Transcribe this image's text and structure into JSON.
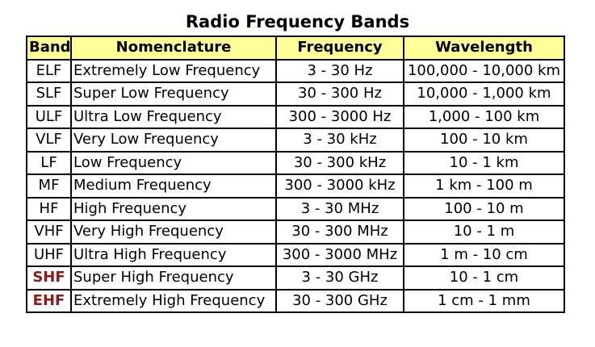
{
  "title": "Radio Frequency Bands",
  "colors": {
    "header_bg": "#ffff99",
    "highlight_band": "#8b1a1a",
    "border": "#000000"
  },
  "columns": {
    "band": "Band",
    "nomenclature": "Nomenclature",
    "frequency": "Frequency",
    "wavelength": "Wavelength"
  },
  "rows": [
    {
      "band": "ELF",
      "nomenclature": "Extremely Low Frequency",
      "frequency": "3 - 30 Hz",
      "wavelength": "100,000 - 10,000 km",
      "highlight": false
    },
    {
      "band": "SLF",
      "nomenclature": "Super Low Frequency",
      "frequency": "30 - 300 Hz",
      "wavelength": "10,000 - 1,000 km",
      "highlight": false
    },
    {
      "band": "ULF",
      "nomenclature": "Ultra Low Frequency",
      "frequency": "300 - 3000 Hz",
      "wavelength": "1,000 - 100 km",
      "highlight": false
    },
    {
      "band": "VLF",
      "nomenclature": "Very Low Frequency",
      "frequency": "3 - 30 kHz",
      "wavelength": "100 - 10 km",
      "highlight": false
    },
    {
      "band": "LF",
      "nomenclature": "Low Frequency",
      "frequency": "30 - 300 kHz",
      "wavelength": "10 - 1 km",
      "highlight": false
    },
    {
      "band": "MF",
      "nomenclature": "Medium Frequency",
      "frequency": "300 - 3000 kHz",
      "wavelength": "1 km - 100 m",
      "highlight": false
    },
    {
      "band": "HF",
      "nomenclature": "High Frequency",
      "frequency": "3 - 30 MHz",
      "wavelength": "100 - 10 m",
      "highlight": false
    },
    {
      "band": "VHF",
      "nomenclature": "Very High Frequency",
      "frequency": "30 - 300 MHz",
      "wavelength": "10 - 1 m",
      "highlight": false
    },
    {
      "band": "UHF",
      "nomenclature": "Ultra High Frequency",
      "frequency": "300 - 3000 MHz",
      "wavelength": "1 m - 10 cm",
      "highlight": false
    },
    {
      "band": "SHF",
      "nomenclature": "Super High Frequency",
      "frequency": "3 - 30 GHz",
      "wavelength": "10 - 1 cm",
      "highlight": true
    },
    {
      "band": "EHF",
      "nomenclature": "Extremely High Frequency",
      "frequency": "30 - 300 GHz",
      "wavelength": "1 cm - 1 mm",
      "highlight": true
    }
  ]
}
